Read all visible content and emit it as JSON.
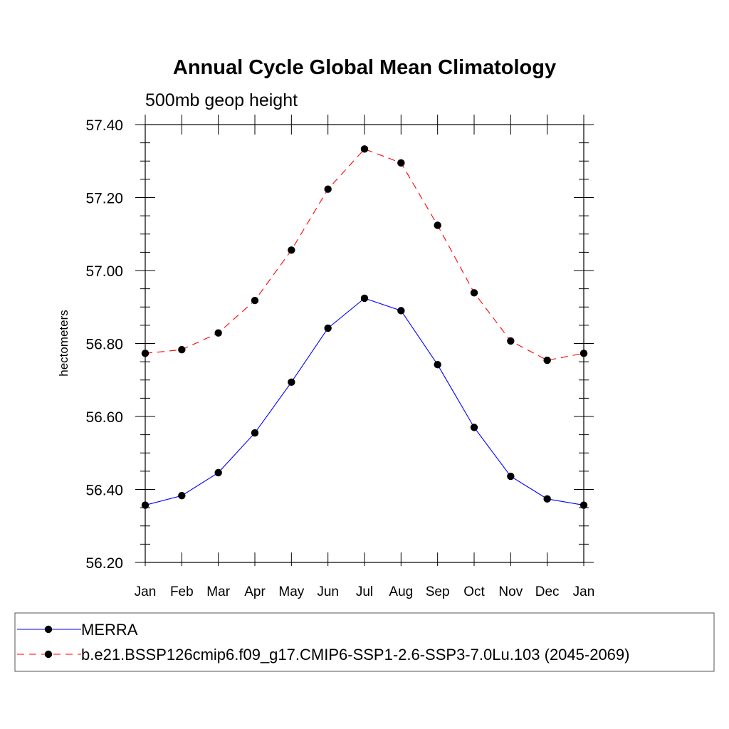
{
  "chart_data": {
    "type": "line",
    "title": "Annual Cycle Global Mean Climatology",
    "subtitle": "500mb geop height",
    "xlabel": "",
    "ylabel": "hectometers",
    "categories": [
      "Jan",
      "Feb",
      "Mar",
      "Apr",
      "May",
      "Jun",
      "Jul",
      "Aug",
      "Sep",
      "Oct",
      "Nov",
      "Dec",
      "Jan"
    ],
    "ylim": [
      56.2,
      57.4
    ],
    "yticks": [
      "56.20",
      "56.40",
      "56.60",
      "56.80",
      "57.00",
      "57.20",
      "57.40"
    ],
    "series": [
      {
        "name": "MERRA",
        "color": "#0000ff",
        "dash": "solid",
        "marker": "filled-circle",
        "values": [
          56.357,
          56.383,
          56.446,
          56.555,
          56.694,
          56.842,
          56.924,
          56.89,
          56.742,
          56.57,
          56.436,
          56.374,
          56.357
        ]
      },
      {
        "name": "b.e21.BSSP126cmip6.f09_g17.CMIP6-SSP1-2.6-SSP3-7.0Lu.103 (2045-2069)",
        "color": "#ff0000",
        "dash": "dashed",
        "marker": "filled-circle",
        "values": [
          56.773,
          56.783,
          56.829,
          56.918,
          57.056,
          57.223,
          57.333,
          57.295,
          57.124,
          56.939,
          56.807,
          56.754,
          56.773
        ]
      }
    ],
    "grid": false,
    "legend": "bottom"
  }
}
